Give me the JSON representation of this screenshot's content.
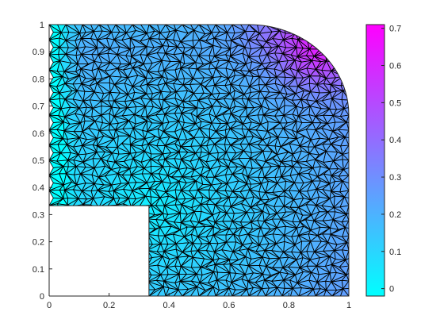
{
  "chart_data": {
    "type": "heatmap",
    "description_free": true,
    "title": "",
    "xlabel": "",
    "ylabel": "",
    "xlim": [
      0,
      1
    ],
    "ylim": [
      0,
      1
    ],
    "x_ticks": [
      "0",
      "0.2",
      "0.4",
      "0.6",
      "0.8",
      "1"
    ],
    "y_ticks": [
      "0",
      "0.1",
      "0.2",
      "0.3",
      "0.4",
      "0.5",
      "0.6",
      "0.7",
      "0.8",
      "0.9",
      "1"
    ],
    "domain": {
      "outer": {
        "x": [
          0,
          1
        ],
        "y": [
          0,
          1
        ]
      },
      "cutout": {
        "x": [
          0,
          0.333
        ],
        "y": [
          0,
          0.333
        ]
      },
      "rounded_corner": {
        "center": [
          0.667,
          0.667
        ],
        "radius": 0.333
      }
    },
    "colorbar": {
      "limits": [
        -0.02,
        0.71
      ],
      "ticks": [
        "0",
        "0.1",
        "0.2",
        "0.3",
        "0.4",
        "0.5",
        "0.6",
        "0.7"
      ],
      "colormap": "cool",
      "low_color": "#00ffff",
      "high_color": "#ff00ff"
    },
    "grid": false,
    "legend": "none"
  }
}
